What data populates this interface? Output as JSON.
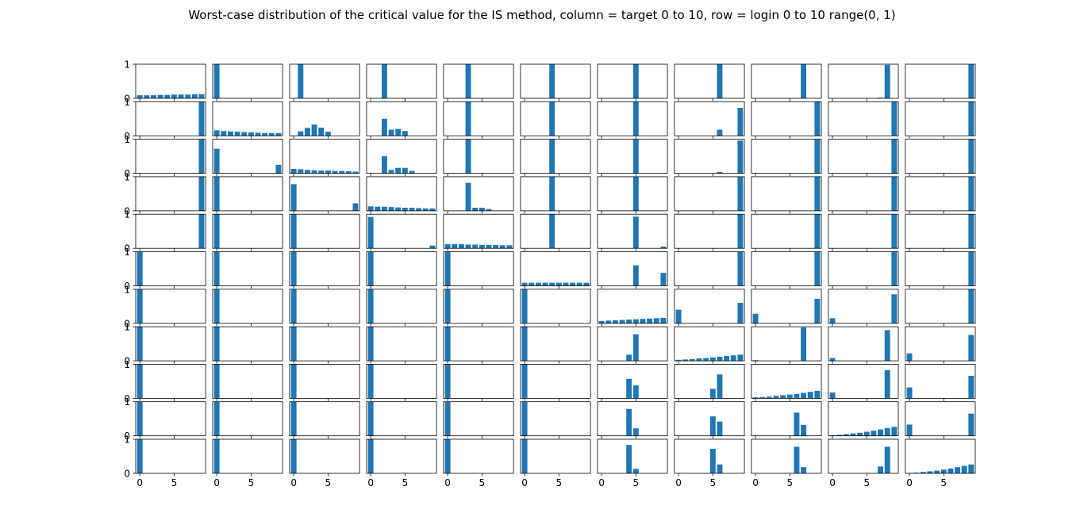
{
  "chart_data": {
    "type": "bar",
    "title": "Worst-case distribution of the critical value for the IS method, column = target 0 to 10, row = login 0 to 10 range(0, 1)",
    "layout_desc": "11 x 11 grid of small bar-chart panels",
    "x": [
      0,
      1,
      2,
      3,
      4,
      5,
      6,
      7,
      8,
      9
    ],
    "xticks": [
      "0",
      "5"
    ],
    "yticks": [
      "0",
      "1"
    ],
    "ylim": [
      0,
      1
    ],
    "bar_color": "#1f77b4",
    "panels": [
      [
        [
          0.09,
          0.09,
          0.09,
          0.1,
          0.1,
          0.11,
          0.11,
          0.11,
          0.12,
          0.12
        ],
        [
          1,
          0,
          0,
          0,
          0,
          0,
          0,
          0,
          0,
          0
        ],
        [
          0,
          1,
          0,
          0,
          0,
          0,
          0,
          0,
          0,
          0
        ],
        [
          0,
          0,
          1,
          0,
          0,
          0,
          0,
          0,
          0,
          0
        ],
        [
          0,
          0,
          0,
          1,
          0,
          0,
          0,
          0,
          0,
          0
        ],
        [
          0,
          0,
          0,
          0,
          1,
          0,
          0,
          0,
          0,
          0
        ],
        [
          0,
          0,
          0,
          0,
          0,
          1,
          0,
          0,
          0,
          0
        ],
        [
          0,
          0,
          0,
          0,
          0,
          0,
          1,
          0,
          0,
          0
        ],
        [
          0,
          0,
          0,
          0,
          0,
          0,
          0,
          1,
          0,
          0
        ],
        [
          0,
          0,
          0,
          0,
          0,
          0,
          0,
          0.02,
          0.98,
          0
        ],
        [
          0,
          0,
          0,
          0,
          0,
          0,
          0,
          0,
          0,
          1
        ]
      ],
      [
        [
          0,
          0,
          0,
          0,
          0,
          0,
          0,
          0,
          0,
          1
        ],
        [
          0.16,
          0.14,
          0.13,
          0.12,
          0.11,
          0.1,
          0.09,
          0.08,
          0.08,
          0.08
        ],
        [
          0,
          0.13,
          0.23,
          0.33,
          0.24,
          0.12,
          0,
          0,
          0,
          0
        ],
        [
          0,
          0,
          0.5,
          0.18,
          0.2,
          0.14,
          0,
          0,
          0,
          0
        ],
        [
          0,
          0,
          0,
          1,
          0,
          0,
          0,
          0,
          0,
          0
        ],
        [
          0,
          0,
          0,
          0,
          1,
          0,
          0,
          0,
          0,
          0
        ],
        [
          0,
          0,
          0,
          0,
          0,
          1,
          0,
          0,
          0,
          0
        ],
        [
          0,
          0,
          0,
          0,
          0,
          0,
          0.18,
          0,
          0,
          0.82
        ],
        [
          0,
          0,
          0,
          0,
          0,
          0,
          0,
          0,
          0,
          1
        ],
        [
          0,
          0,
          0,
          0,
          0,
          0,
          0,
          0,
          0,
          1
        ],
        [
          0,
          0,
          0,
          0,
          0,
          0,
          0,
          0,
          0,
          1
        ]
      ],
      [
        [
          0,
          0,
          0,
          0,
          0,
          0,
          0,
          0,
          0,
          1
        ],
        [
          0.72,
          0,
          0,
          0,
          0,
          0,
          0,
          0,
          0,
          0.25
        ],
        [
          0.13,
          0.12,
          0.1,
          0.09,
          0.08,
          0.08,
          0.07,
          0.07,
          0.06,
          0.05
        ],
        [
          0,
          0,
          0.5,
          0.1,
          0.16,
          0.16,
          0.07,
          0,
          0,
          0
        ],
        [
          0,
          0,
          0,
          1,
          0,
          0,
          0,
          0,
          0,
          0
        ],
        [
          0,
          0,
          0,
          0,
          1,
          0,
          0,
          0,
          0,
          0
        ],
        [
          0,
          0,
          0,
          0,
          0,
          1,
          0,
          0,
          0,
          0
        ],
        [
          0,
          0,
          0,
          0,
          0,
          0,
          0.04,
          0,
          0,
          0.96
        ],
        [
          0,
          0,
          0,
          0,
          0,
          0,
          0,
          0,
          0,
          1
        ],
        [
          0,
          0,
          0,
          0,
          0,
          0,
          0,
          0,
          0,
          1
        ],
        [
          0,
          0,
          0,
          0,
          0,
          0,
          0,
          0,
          0,
          1
        ]
      ],
      [
        [
          0,
          0,
          0,
          0,
          0,
          0,
          0,
          0,
          0,
          1
        ],
        [
          1,
          0,
          0,
          0,
          0,
          0,
          0,
          0,
          0,
          0
        ],
        [
          0.78,
          0,
          0,
          0,
          0,
          0,
          0,
          0,
          0,
          0.22
        ],
        [
          0.13,
          0.12,
          0.12,
          0.11,
          0.1,
          0.09,
          0.09,
          0.08,
          0.07,
          0.07
        ],
        [
          0,
          0,
          0,
          0.82,
          0.09,
          0.09,
          0.05,
          0,
          0,
          0
        ],
        [
          0,
          0,
          0,
          0,
          1,
          0,
          0,
          0,
          0,
          0
        ],
        [
          0,
          0,
          0,
          0,
          0,
          1,
          0,
          0,
          0,
          0
        ],
        [
          0,
          0,
          0,
          0,
          0,
          0,
          0,
          0,
          0,
          1
        ],
        [
          0,
          0,
          0,
          0,
          0,
          0,
          0,
          0,
          0,
          1
        ],
        [
          0,
          0,
          0,
          0,
          0,
          0,
          0,
          0,
          0,
          1
        ],
        [
          0,
          0,
          0,
          0,
          0,
          0,
          0,
          0,
          0,
          1
        ]
      ],
      [
        [
          0,
          0,
          0,
          0,
          0,
          0,
          0,
          0,
          0,
          1
        ],
        [
          1,
          0,
          0,
          0,
          0,
          0,
          0,
          0,
          0,
          0
        ],
        [
          1,
          0,
          0,
          0,
          0,
          0,
          0,
          0,
          0,
          0
        ],
        [
          0.92,
          0,
          0,
          0,
          0,
          0,
          0,
          0,
          0,
          0.08
        ],
        [
          0.12,
          0.12,
          0.12,
          0.11,
          0.11,
          0.1,
          0.1,
          0.1,
          0.09,
          0.09
        ],
        [
          0,
          0,
          0,
          0,
          1,
          0,
          0,
          0,
          0,
          0
        ],
        [
          0,
          0,
          0,
          0,
          0,
          0.93,
          0,
          0,
          0,
          0.05
        ],
        [
          0,
          0,
          0,
          0,
          0,
          0,
          0,
          0,
          0,
          1
        ],
        [
          0,
          0,
          0,
          0,
          0,
          0,
          0,
          0,
          0,
          1
        ],
        [
          0,
          0,
          0,
          0,
          0,
          0,
          0,
          0,
          0,
          1
        ],
        [
          0,
          0,
          0,
          0,
          0,
          0,
          0,
          0,
          0,
          1
        ]
      ],
      [
        [
          1,
          0,
          0,
          0,
          0,
          0,
          0,
          0,
          0,
          0
        ],
        [
          1,
          0,
          0,
          0,
          0,
          0,
          0,
          0,
          0,
          0
        ],
        [
          1,
          0,
          0,
          0,
          0,
          0,
          0,
          0,
          0,
          0
        ],
        [
          1,
          0,
          0,
          0,
          0,
          0,
          0,
          0,
          0,
          0
        ],
        [
          1,
          0,
          0,
          0,
          0,
          0,
          0,
          0,
          0,
          0
        ],
        [
          0.09,
          0.09,
          0.09,
          0.09,
          0.09,
          0.09,
          0.09,
          0.09,
          0.09,
          0.09
        ],
        [
          0,
          0,
          0,
          0,
          0,
          0.6,
          0,
          0,
          0,
          0.38
        ],
        [
          0,
          0,
          0,
          0,
          0,
          0,
          0,
          0,
          0,
          1
        ],
        [
          0,
          0,
          0,
          0,
          0,
          0,
          0,
          0,
          0,
          1
        ],
        [
          0,
          0,
          0,
          0,
          0,
          0,
          0,
          0,
          0,
          1
        ],
        [
          0,
          0,
          0,
          0,
          0,
          0,
          0,
          0,
          0,
          1
        ]
      ],
      [
        [
          1,
          0,
          0,
          0,
          0,
          0,
          0,
          0,
          0,
          0
        ],
        [
          1,
          0,
          0,
          0,
          0,
          0,
          0,
          0,
          0,
          0
        ],
        [
          1,
          0,
          0,
          0,
          0,
          0,
          0,
          0,
          0,
          0
        ],
        [
          1,
          0,
          0,
          0,
          0,
          0,
          0,
          0,
          0,
          0
        ],
        [
          1,
          0,
          0,
          0,
          0,
          0,
          0,
          0,
          0,
          0
        ],
        [
          1,
          0,
          0,
          0,
          0,
          0,
          0,
          0,
          0,
          0
        ],
        [
          0.07,
          0.08,
          0.09,
          0.1,
          0.11,
          0.12,
          0.13,
          0.14,
          0.15,
          0.16
        ],
        [
          0.4,
          0,
          0,
          0,
          0,
          0,
          0,
          0,
          0,
          0.6
        ],
        [
          0.28,
          0,
          0,
          0,
          0,
          0,
          0,
          0,
          0,
          0.72
        ],
        [
          0.15,
          0,
          0,
          0,
          0,
          0,
          0,
          0,
          0,
          0.85
        ],
        [
          0,
          0,
          0,
          0,
          0,
          0,
          0,
          0,
          0,
          1
        ]
      ],
      [
        [
          1,
          0,
          0,
          0,
          0,
          0,
          0,
          0,
          0,
          0
        ],
        [
          1,
          0,
          0,
          0,
          0,
          0,
          0,
          0,
          0,
          0
        ],
        [
          1,
          0,
          0,
          0,
          0,
          0,
          0,
          0,
          0,
          0
        ],
        [
          1,
          0,
          0,
          0,
          0,
          0,
          0,
          0,
          0,
          0
        ],
        [
          1,
          0,
          0,
          0,
          0,
          0,
          0,
          0,
          0,
          0
        ],
        [
          1,
          0,
          0,
          0,
          0,
          0,
          0,
          0,
          0,
          0
        ],
        [
          0,
          0,
          0,
          0,
          0.18,
          0.78,
          0,
          0,
          0,
          0
        ],
        [
          0.03,
          0.04,
          0.05,
          0.07,
          0.08,
          0.1,
          0.12,
          0.14,
          0.16,
          0.18
        ],
        [
          0.02,
          0,
          0,
          0,
          0,
          0,
          0,
          0.98,
          0,
          0
        ],
        [
          0.08,
          0,
          0,
          0,
          0,
          0,
          0,
          0,
          0.9,
          0
        ],
        [
          0.22,
          0,
          0,
          0,
          0,
          0,
          0,
          0,
          0,
          0.76
        ]
      ],
      [
        [
          1,
          0,
          0,
          0,
          0,
          0,
          0,
          0,
          0,
          0
        ],
        [
          1,
          0,
          0,
          0,
          0,
          0,
          0,
          0,
          0,
          0
        ],
        [
          1,
          0,
          0,
          0,
          0,
          0,
          0,
          0,
          0,
          0
        ],
        [
          1,
          0,
          0,
          0,
          0,
          0,
          0,
          0,
          0,
          0
        ],
        [
          1,
          0,
          0,
          0,
          0,
          0,
          0,
          0,
          0,
          0
        ],
        [
          1,
          0,
          0,
          0,
          0,
          0,
          0,
          0,
          0,
          0
        ],
        [
          0,
          0,
          0,
          0,
          0.57,
          0.38,
          0,
          0,
          0,
          0
        ],
        [
          0,
          0,
          0,
          0,
          0,
          0.28,
          0.7,
          0,
          0,
          0
        ],
        [
          0.03,
          0.04,
          0.05,
          0.07,
          0.09,
          0.11,
          0.13,
          0.16,
          0.19,
          0.22
        ],
        [
          0.17,
          0,
          0,
          0,
          0,
          0,
          0,
          0,
          0.83,
          0
        ],
        [
          0.32,
          0,
          0,
          0,
          0,
          0,
          0,
          0,
          0,
          0.66
        ]
      ],
      [
        [
          1,
          0,
          0,
          0,
          0,
          0,
          0,
          0,
          0,
          0
        ],
        [
          1,
          0,
          0,
          0,
          0,
          0,
          0,
          0,
          0,
          0
        ],
        [
          1,
          0,
          0,
          0,
          0,
          0,
          0,
          0,
          0,
          0
        ],
        [
          1,
          0,
          0,
          0,
          0,
          0,
          0,
          0,
          0,
          0
        ],
        [
          1,
          0,
          0,
          0,
          0,
          0,
          0,
          0,
          0,
          0
        ],
        [
          1,
          0,
          0,
          0,
          0,
          0,
          0,
          0,
          0,
          0
        ],
        [
          0,
          0,
          0,
          0,
          0.79,
          0.22,
          0,
          0,
          0,
          0
        ],
        [
          0,
          0,
          0,
          0,
          0,
          0.57,
          0.42,
          0,
          0,
          0
        ],
        [
          0,
          0,
          0,
          0,
          0,
          0,
          0.68,
          0.32,
          0,
          0
        ],
        [
          0.02,
          0.03,
          0.05,
          0.07,
          0.09,
          0.12,
          0.15,
          0.19,
          0.23,
          0.26
        ],
        [
          0.33,
          0,
          0,
          0,
          0,
          0,
          0,
          0,
          0,
          0.65
        ]
      ],
      [
        [
          1,
          0,
          0,
          0,
          0,
          0,
          0,
          0,
          0,
          0
        ],
        [
          1,
          0,
          0,
          0,
          0,
          0,
          0,
          0,
          0,
          0
        ],
        [
          1,
          0,
          0,
          0,
          0,
          0,
          0,
          0,
          0,
          0
        ],
        [
          1,
          0,
          0,
          0,
          0,
          0,
          0,
          0,
          0,
          0
        ],
        [
          1,
          0,
          0,
          0,
          0,
          0,
          0,
          0,
          0,
          0
        ],
        [
          1,
          0,
          0,
          0,
          0,
          0,
          0,
          0,
          0,
          0
        ],
        [
          0,
          0,
          0,
          0,
          0.83,
          0.13,
          0,
          0,
          0,
          0
        ],
        [
          0,
          0,
          0,
          0,
          0,
          0.72,
          0.26,
          0,
          0,
          0
        ],
        [
          0,
          0,
          0,
          0,
          0,
          0,
          0.78,
          0.18,
          0,
          0
        ],
        [
          0,
          0,
          0,
          0,
          0,
          0,
          0,
          0.2,
          0.78,
          0
        ],
        [
          0.01,
          0.02,
          0.04,
          0.06,
          0.08,
          0.11,
          0.14,
          0.18,
          0.22,
          0.26
        ]
      ]
    ]
  }
}
